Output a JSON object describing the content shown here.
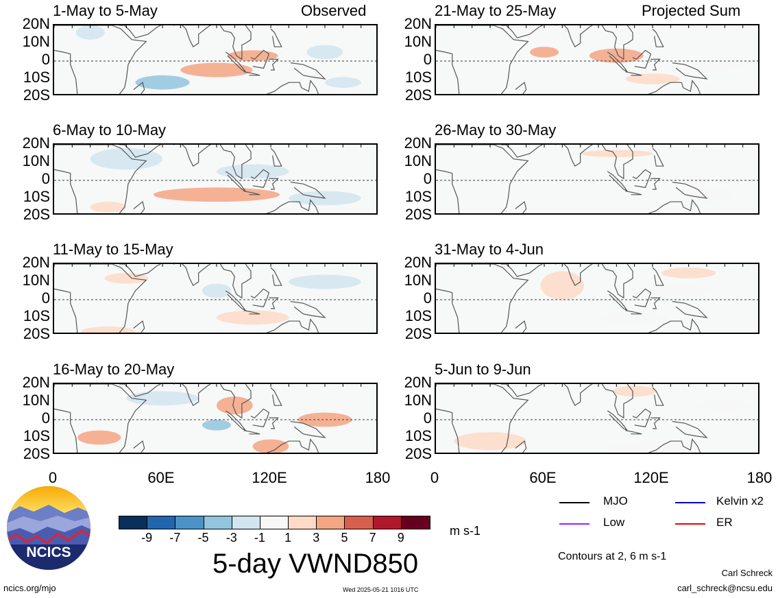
{
  "panels_left_header": "Observed",
  "panels_right_header": "Projected Sum",
  "panels_left": [
    {
      "title": "1-May to 5-May"
    },
    {
      "title": "6-May to 10-May"
    },
    {
      "title": "11-May to 15-May"
    },
    {
      "title": "16-May to 20-May"
    }
  ],
  "panels_right": [
    {
      "title": "21-May to 25-May"
    },
    {
      "title": "26-May to 30-May"
    },
    {
      "title": "31-May to 4-Jun"
    },
    {
      "title": "5-Jun to 9-Jun"
    }
  ],
  "lat_labels": [
    "20N",
    "10N",
    "0",
    "10S",
    "20S"
  ],
  "lon_labels": [
    "0",
    "60E",
    "120E",
    "180"
  ],
  "colorbar": {
    "ticks": [
      "-9",
      "-7",
      "-5",
      "-3",
      "-1",
      "1",
      "3",
      "5",
      "7",
      "9"
    ],
    "colors": [
      "#08305a",
      "#2166ac",
      "#4b93c6",
      "#92c5de",
      "#d1e5f0",
      "#f7f7f7",
      "#fddbc7",
      "#f4a582",
      "#d6604d",
      "#b2182b",
      "#67001f"
    ],
    "unit": "m s-1"
  },
  "main_title": "5-day VWND850",
  "legend": [
    {
      "label": "MJO",
      "color": "#000000"
    },
    {
      "label": "Kelvin x2",
      "color": "#0000cc"
    },
    {
      "label": "Low",
      "color": "#a020f0"
    },
    {
      "label": "ER",
      "color": "#ee0000"
    }
  ],
  "contours_note": "Contours at 2, 6 m s-1",
  "author": "Carl Schreck",
  "email": "carl_schreck@ncsu.edu",
  "site": "ncics.org/mjo",
  "timestamp": "Wed 2025-05-21 1016 UTC",
  "logo_text": "NCICS"
}
